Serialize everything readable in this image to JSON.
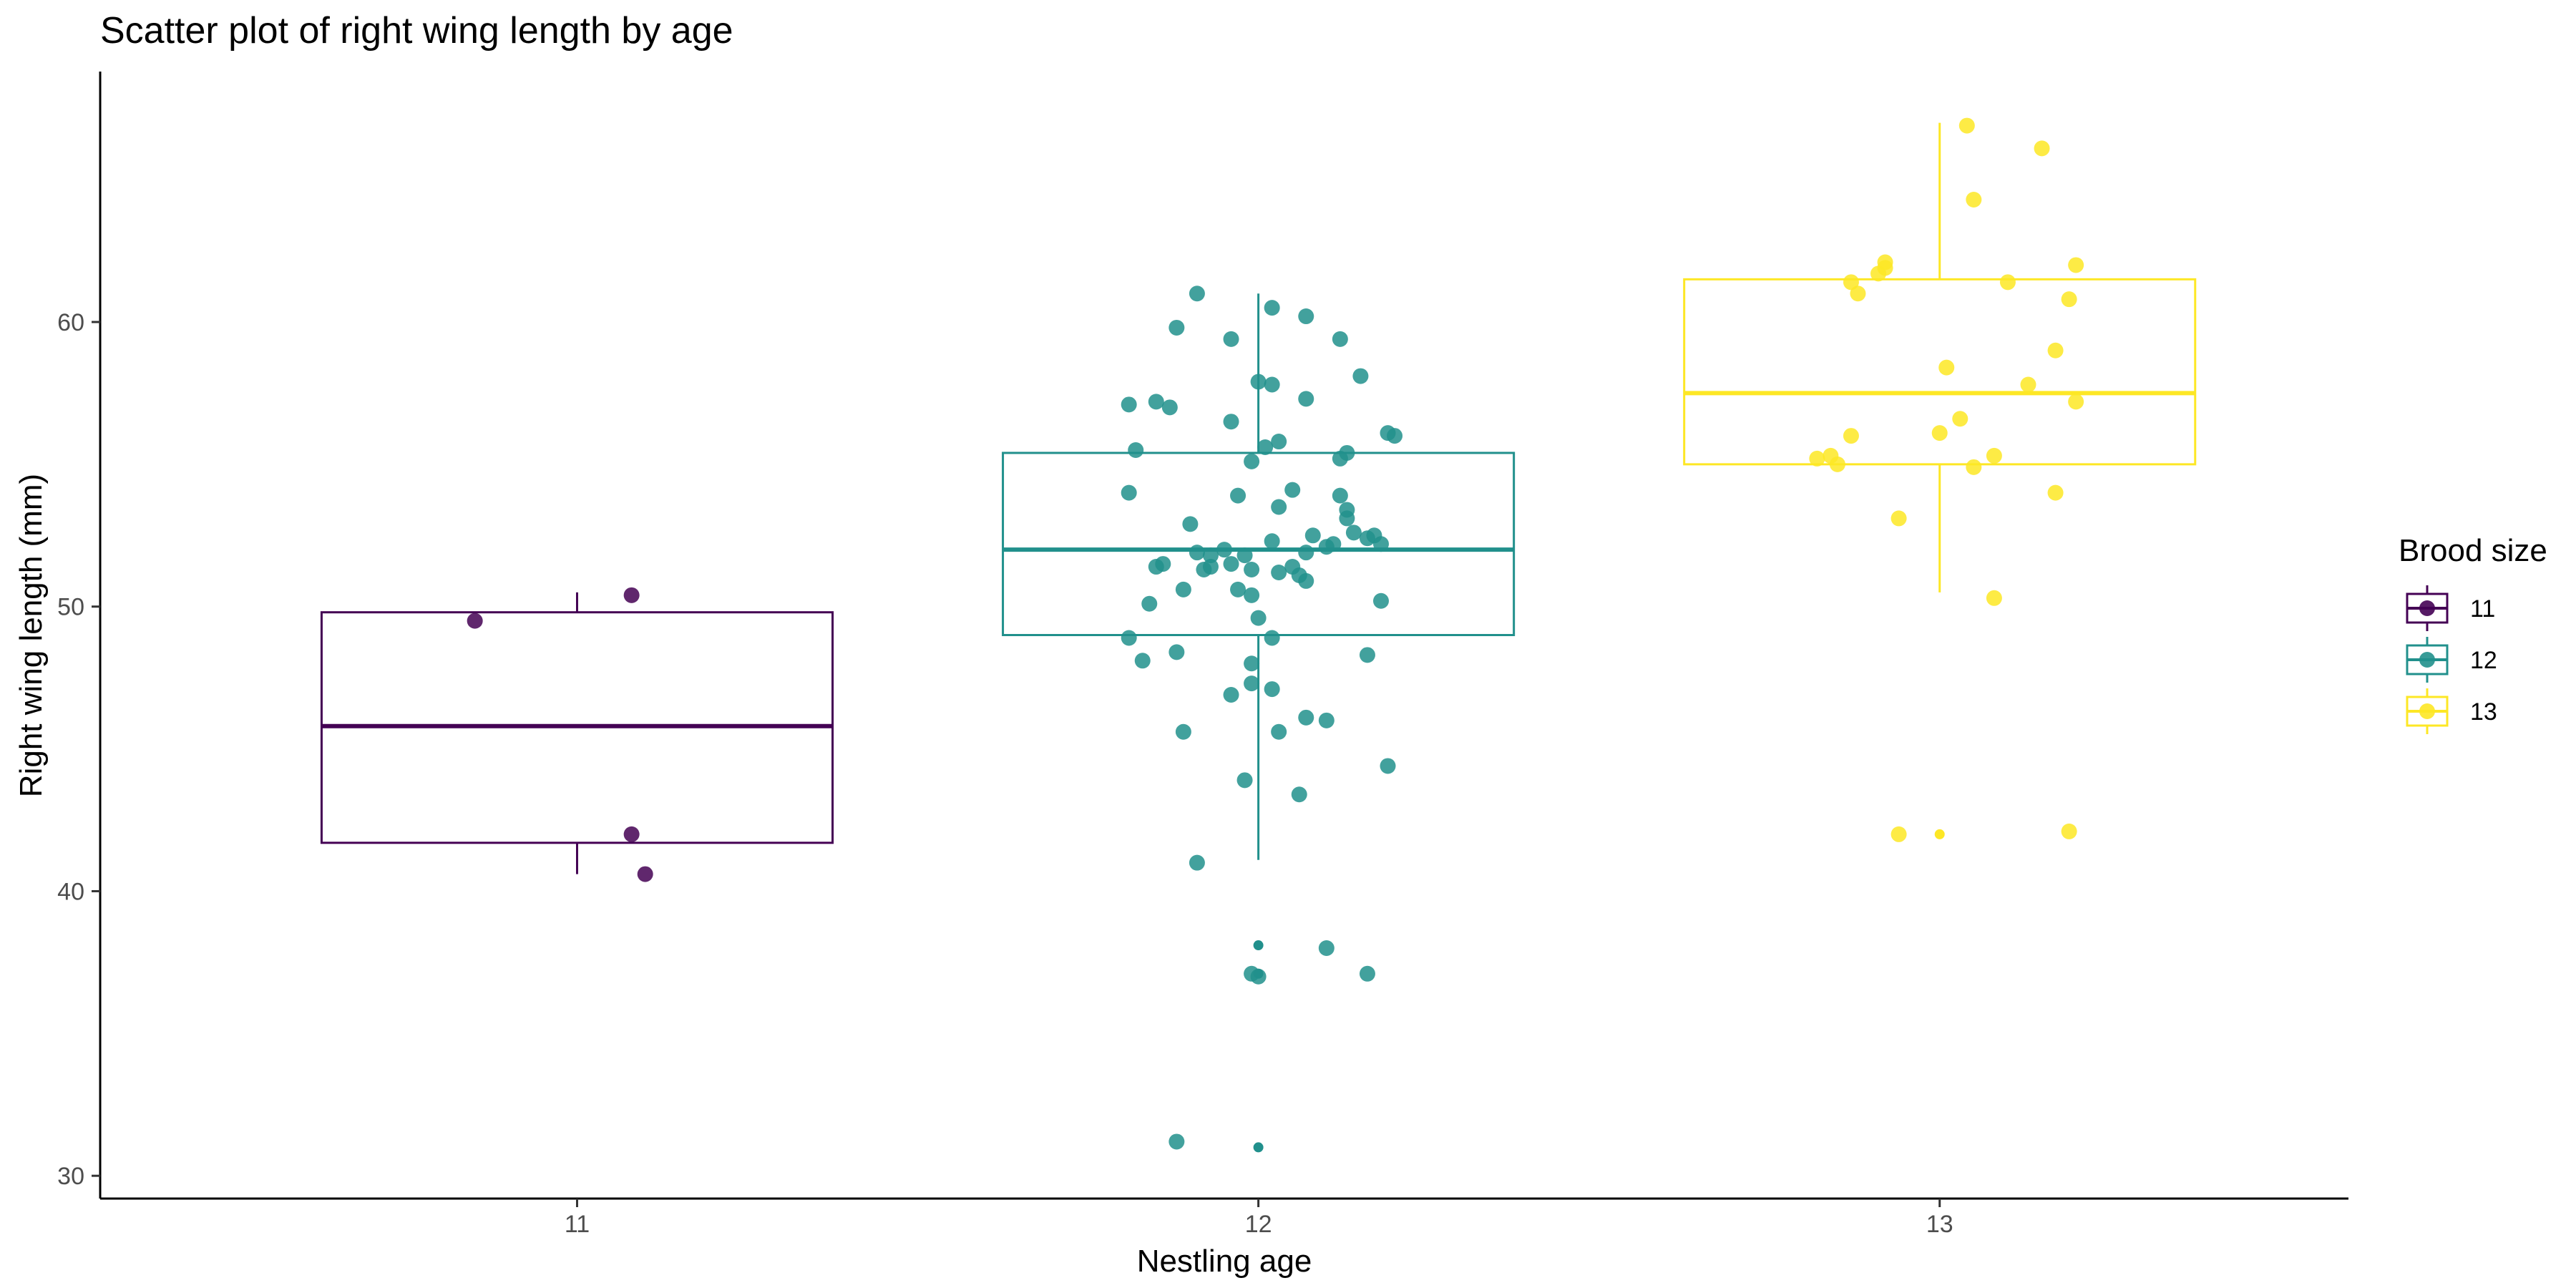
{
  "chart_data": {
    "type": "box+scatter",
    "title": "Scatter plot of right wing length by age",
    "xlabel": "Nestling age",
    "ylabel": "Right wing length (mm)",
    "categories": [
      "11",
      "12",
      "13"
    ],
    "ylim": [
      29.2,
      68.8
    ],
    "yticks": [
      30,
      40,
      50,
      60
    ],
    "grid": false,
    "legend": {
      "title": "Brood size",
      "position": "right",
      "entries": [
        "11",
        "12",
        "13"
      ]
    },
    "colors": {
      "11": "#440154",
      "12": "#21908C",
      "13": "#FDE725"
    },
    "boxes": [
      {
        "category": "11",
        "q1": 41.7,
        "median": 45.8,
        "q3": 49.8,
        "whisker_low": 40.6,
        "whisker_high": 50.5
      },
      {
        "category": "12",
        "q1": 49.0,
        "median": 52.0,
        "q3": 55.4,
        "whisker_low": 41.1,
        "whisker_high": 61.0
      },
      {
        "category": "13",
        "q1": 55.0,
        "median": 57.5,
        "q3": 61.5,
        "whisker_low": 50.5,
        "whisker_high": 67.0
      }
    ],
    "series": [
      {
        "category": "11",
        "points": [
          [
            10.85,
            49.5
          ],
          [
            11.08,
            50.4
          ],
          [
            11.08,
            42.0
          ],
          [
            11.1,
            40.6
          ]
        ]
      },
      {
        "category": "12",
        "points": [
          [
            11.91,
            61.0
          ],
          [
            12.02,
            60.5
          ],
          [
            12.07,
            60.2
          ],
          [
            11.88,
            59.8
          ],
          [
            11.96,
            59.4
          ],
          [
            12.12,
            59.4
          ],
          [
            12.0,
            57.9
          ],
          [
            12.02,
            57.8
          ],
          [
            12.15,
            58.1
          ],
          [
            11.81,
            57.1
          ],
          [
            11.85,
            57.2
          ],
          [
            11.87,
            57.0
          ],
          [
            12.07,
            57.3
          ],
          [
            11.96,
            56.5
          ],
          [
            12.19,
            56.1
          ],
          [
            12.2,
            56.0
          ],
          [
            12.03,
            55.8
          ],
          [
            11.82,
            55.5
          ],
          [
            12.01,
            55.6
          ],
          [
            12.13,
            55.4
          ],
          [
            11.99,
            55.1
          ],
          [
            12.12,
            55.2
          ],
          [
            11.81,
            54.0
          ],
          [
            11.97,
            53.9
          ],
          [
            12.05,
            54.1
          ],
          [
            12.12,
            53.9
          ],
          [
            12.03,
            53.5
          ],
          [
            12.13,
            53.4
          ],
          [
            12.13,
            53.1
          ],
          [
            11.9,
            52.9
          ],
          [
            12.02,
            52.3
          ],
          [
            12.08,
            52.5
          ],
          [
            12.14,
            52.6
          ],
          [
            12.16,
            52.4
          ],
          [
            12.17,
            52.5
          ],
          [
            11.91,
            51.9
          ],
          [
            11.93,
            51.8
          ],
          [
            11.95,
            52.0
          ],
          [
            11.98,
            51.8
          ],
          [
            12.07,
            51.9
          ],
          [
            12.1,
            52.1
          ],
          [
            12.11,
            52.2
          ],
          [
            12.18,
            52.2
          ],
          [
            11.85,
            51.4
          ],
          [
            11.86,
            51.5
          ],
          [
            11.92,
            51.3
          ],
          [
            11.93,
            51.4
          ],
          [
            11.96,
            51.5
          ],
          [
            11.99,
            51.3
          ],
          [
            12.03,
            51.2
          ],
          [
            12.05,
            51.4
          ],
          [
            12.06,
            51.1
          ],
          [
            12.07,
            50.9
          ],
          [
            11.89,
            50.6
          ],
          [
            11.97,
            50.6
          ],
          [
            11.99,
            50.4
          ],
          [
            11.84,
            50.1
          ],
          [
            12.18,
            50.2
          ],
          [
            12.0,
            49.6
          ],
          [
            11.81,
            48.9
          ],
          [
            12.02,
            48.9
          ],
          [
            11.88,
            48.4
          ],
          [
            11.83,
            48.1
          ],
          [
            12.16,
            48.3
          ],
          [
            11.99,
            48.0
          ],
          [
            11.99,
            47.3
          ],
          [
            11.96,
            46.9
          ],
          [
            12.02,
            47.1
          ],
          [
            12.07,
            46.1
          ],
          [
            12.1,
            46.0
          ],
          [
            11.89,
            45.6
          ],
          [
            12.03,
            45.6
          ],
          [
            12.19,
            44.4
          ],
          [
            11.98,
            43.9
          ],
          [
            12.06,
            43.4
          ],
          [
            11.91,
            41.0
          ],
          [
            12.1,
            38.0
          ],
          [
            11.99,
            37.1
          ],
          [
            12.0,
            37.0
          ],
          [
            12.16,
            37.1
          ],
          [
            11.88,
            31.2
          ]
        ]
      },
      {
        "category": "13",
        "points": [
          [
            13.04,
            66.9
          ],
          [
            13.15,
            66.1
          ],
          [
            13.05,
            64.3
          ],
          [
            12.92,
            62.1
          ],
          [
            12.92,
            61.9
          ],
          [
            13.2,
            62.0
          ],
          [
            12.87,
            61.4
          ],
          [
            12.91,
            61.7
          ],
          [
            13.1,
            61.4
          ],
          [
            12.88,
            61.0
          ],
          [
            13.19,
            60.8
          ],
          [
            13.17,
            59.0
          ],
          [
            13.01,
            58.4
          ],
          [
            13.13,
            57.8
          ],
          [
            13.2,
            57.2
          ],
          [
            13.03,
            56.6
          ],
          [
            12.87,
            56.0
          ],
          [
            13.0,
            56.1
          ],
          [
            12.84,
            55.3
          ],
          [
            12.85,
            55.0
          ],
          [
            12.82,
            55.2
          ],
          [
            13.08,
            55.3
          ],
          [
            13.05,
            54.9
          ],
          [
            13.17,
            54.0
          ],
          [
            12.94,
            53.1
          ],
          [
            13.08,
            50.3
          ],
          [
            12.94,
            42.0
          ],
          [
            13.19,
            42.1
          ]
        ]
      }
    ],
    "outlier_markers": [
      {
        "category": "12",
        "points": [
          [
            12.0,
            38.1
          ],
          [
            12.0,
            37.1
          ],
          [
            12.0,
            31.0
          ]
        ]
      },
      {
        "category": "13",
        "points": [
          [
            13.0,
            42.0
          ]
        ]
      }
    ]
  }
}
